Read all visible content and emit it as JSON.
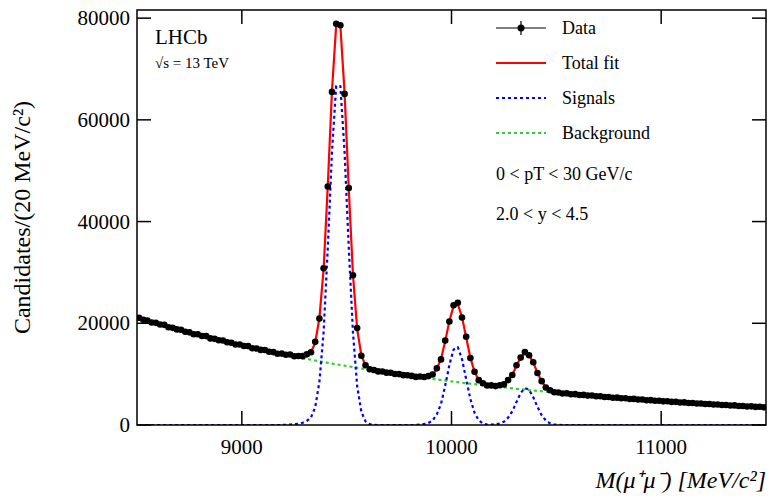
{
  "chart_data": {
    "type": "line",
    "x_label": "M(μ⁺μ⁻) [MeV/c²]",
    "y_label": "Candidates/(20 MeV/c²)",
    "annotations": [
      "LHCb",
      "√s = 13 TeV",
      "0 < pT < 30 GeV/c",
      "2.0 < y < 4.5"
    ],
    "xlim": [
      8500,
      11500
    ],
    "ylim": [
      0,
      81600
    ],
    "xticks": [
      9000,
      10000,
      11000
    ],
    "yticks": [
      0,
      20000,
      40000,
      60000,
      80000
    ],
    "grid": false,
    "legend": "upper right",
    "x": [
      8510,
      8530,
      8550,
      8570,
      8590,
      8610,
      8630,
      8650,
      8670,
      8690,
      8710,
      8730,
      8750,
      8770,
      8790,
      8810,
      8830,
      8850,
      8870,
      8890,
      8910,
      8930,
      8950,
      8970,
      8990,
      9010,
      9030,
      9050,
      9070,
      9090,
      9110,
      9130,
      9150,
      9170,
      9190,
      9210,
      9230,
      9250,
      9270,
      9290,
      9310,
      9330,
      9350,
      9370,
      9390,
      9410,
      9430,
      9450,
      9470,
      9490,
      9510,
      9530,
      9550,
      9570,
      9590,
      9610,
      9630,
      9650,
      9670,
      9690,
      9710,
      9730,
      9750,
      9770,
      9790,
      9810,
      9830,
      9850,
      9870,
      9890,
      9910,
      9930,
      9950,
      9970,
      9990,
      10010,
      10030,
      10050,
      10070,
      10090,
      10110,
      10130,
      10150,
      10170,
      10190,
      10210,
      10230,
      10250,
      10270,
      10290,
      10310,
      10330,
      10350,
      10370,
      10390,
      10410,
      10430,
      10450,
      10470,
      10490,
      10510,
      10530,
      10550,
      10570,
      10590,
      10610,
      10630,
      10650,
      10670,
      10690,
      10710,
      10730,
      10750,
      10770,
      10790,
      10810,
      10830,
      10850,
      10870,
      10890,
      10910,
      10930,
      10950,
      10970,
      10990,
      11010,
      11030,
      11050,
      11070,
      11090,
      11110,
      11130,
      11150,
      11170,
      11190,
      11210,
      11230,
      11250,
      11270,
      11290,
      11310,
      11330,
      11350,
      11370,
      11390,
      11410,
      11430,
      11450,
      11470,
      11490
    ],
    "series": [
      {
        "name": "Data",
        "type": "scatter",
        "marker": "circle",
        "color": "#000000",
        "values": [
          21100,
          20690,
          20540,
          20140,
          20090,
          19750,
          19690,
          19210,
          19100,
          18800,
          18720,
          18340,
          18220,
          17850,
          17830,
          17510,
          17480,
          17030,
          16940,
          16660,
          16620,
          16260,
          16160,
          15820,
          15820,
          15520,
          15510,
          15090,
          15030,
          14770,
          14750,
          14410,
          14330,
          14010,
          14040,
          13800,
          13850,
          13520,
          13580,
          13540,
          13890,
          14300,
          16350,
          20950,
          30800,
          46900,
          65500,
          78900,
          78600,
          65100,
          46600,
          29450,
          19050,
          13620,
          11750,
          10950,
          10800,
          10540,
          10520,
          10290,
          10260,
          10030,
          10010,
          9800,
          9790,
          9650,
          9460,
          9530,
          9430,
          9620,
          9920,
          11140,
          12900,
          16600,
          20350,
          23550,
          24050,
          21150,
          17340,
          13160,
          10480,
          8820,
          8200,
          7780,
          7790,
          7650,
          7820,
          7980,
          8830,
          9830,
          11760,
          13250,
          14330,
          13700,
          12340,
          10210,
          8620,
          7370,
          6840,
          6450,
          6390,
          6200,
          6220,
          6060,
          6070,
          5910,
          5920,
          5780,
          5790,
          5640,
          5640,
          5500,
          5510,
          5370,
          5380,
          5250,
          5250,
          5120,
          5130,
          5000,
          5010,
          4880,
          4890,
          4760,
          4770,
          4650,
          4660,
          4540,
          4550,
          4430,
          4440,
          4320,
          4340,
          4220,
          4230,
          4120,
          4140,
          4020,
          4040,
          3920,
          3940,
          3830,
          3850,
          3740,
          3750,
          3650,
          3670,
          3560,
          3580,
          3480
        ]
      },
      {
        "name": "Total fit",
        "type": "line",
        "line_style": "solid",
        "color": "#ff0000",
        "values": [
          21000,
          20750,
          20500,
          20260,
          20010,
          19780,
          19540,
          19300,
          19080,
          18850,
          18620,
          18400,
          18180,
          17970,
          17750,
          17540,
          17330,
          17120,
          16920,
          16710,
          16520,
          16320,
          16120,
          15940,
          15740,
          15550,
          15360,
          15180,
          15010,
          14820,
          14650,
          14470,
          14290,
          14130,
          13960,
          13830,
          13700,
          13610,
          13560,
          13590,
          13790,
          14330,
          16180,
          21030,
          30600,
          47100,
          65780,
          78590,
          78450,
          65360,
          46390,
          29600,
          18910,
          13710,
          11682,
          11008,
          10750,
          10590,
          10470,
          10340,
          10210,
          10090,
          9970,
          9860,
          9730,
          9620,
          9500,
          9490,
          9480,
          9570,
          9960,
          11050,
          12990,
          16490,
          20470,
          23390,
          23740,
          21260,
          17220,
          13240,
          10420,
          8850,
          8140,
          7825,
          7725,
          7690,
          7750,
          8030,
          8750,
          9900,
          11650,
          13340,
          14210,
          13790,
          12250,
          10280,
          8560,
          7420,
          6790,
          6490,
          6345,
          6240,
          6170,
          6100,
          6020,
          5950,
          5880,
          5810,
          5740,
          5670,
          5600,
          5530,
          5470,
          5410,
          5340,
          5280,
          5210,
          5150,
          5090,
          5030,
          4970,
          4910,
          4850,
          4790,
          4730,
          4680,
          4620,
          4570,
          4510,
          4460,
          4410,
          4350,
          4300,
          4250,
          4200,
          4150,
          4100,
          4050,
          4000,
          3950,
          3910,
          3860,
          3810,
          3770,
          3720,
          3680,
          3640,
          3590,
          3550,
          3510
        ]
      },
      {
        "name": "Signals",
        "type": "line",
        "line_style": "dotted",
        "color": "#0000ff",
        "values": [
          0,
          0,
          0,
          0,
          0,
          0,
          0,
          0,
          0,
          0,
          0,
          0,
          0,
          0,
          0,
          0,
          0,
          0,
          0,
          0,
          0,
          0,
          0,
          0,
          0,
          0,
          0,
          0,
          0,
          0,
          0,
          0,
          0,
          0,
          0,
          40,
          80,
          150,
          250,
          450,
          800,
          1500,
          3500,
          8500,
          18220,
          34870,
          53700,
          66650,
          66650,
          53700,
          34870,
          18220,
          7670,
          2600,
          712,
          158,
          30,
          0,
          0,
          0,
          0,
          0,
          0,
          0,
          0,
          0,
          0,
          100,
          200,
          400,
          900,
          2100,
          4150,
          7750,
          11840,
          14860,
          15310,
          12940,
          8990,
          5110,
          2390,
          910,
          300,
          75,
          75,
          130,
          280,
          650,
          1450,
          2690,
          4530,
          6300,
          7260,
          6920,
          5460,
          3570,
          1930,
          870,
          320,
          100,
          25,
          0,
          0,
          0,
          0,
          0,
          0,
          0,
          0,
          0,
          0,
          0,
          0,
          0,
          0,
          0,
          0,
          0,
          0,
          0,
          0,
          0,
          0,
          0,
          0,
          0,
          0,
          0,
          0,
          0,
          0,
          0,
          0,
          0,
          0,
          0,
          0,
          0,
          0,
          0,
          0,
          0,
          0,
          0,
          0,
          0,
          0,
          0,
          0,
          0
        ]
      },
      {
        "name": "Background",
        "type": "line",
        "line_style": "dotted",
        "color": "#33cc33",
        "values": [
          21000,
          20750,
          20500,
          20260,
          20010,
          19780,
          19540,
          19300,
          19080,
          18850,
          18620,
          18400,
          18180,
          17970,
          17750,
          17540,
          17330,
          17120,
          16920,
          16710,
          16520,
          16320,
          16120,
          15940,
          15740,
          15550,
          15360,
          15180,
          15010,
          14820,
          14650,
          14470,
          14290,
          14130,
          13960,
          13790,
          13620,
          13460,
          13310,
          13140,
          12990,
          12830,
          12680,
          12530,
          12380,
          12230,
          12080,
          11940,
          11800,
          11660,
          11520,
          11380,
          11240,
          11110,
          10970,
          10850,
          10720,
          10590,
          10470,
          10340,
          10210,
          10090,
          9970,
          9860,
          9730,
          9620,
          9500,
          9390,
          9280,
          9170,
          9060,
          8950,
          8840,
          8740,
          8630,
          8530,
          8430,
          8320,
          8230,
          8130,
          8030,
          7940,
          7840,
          7750,
          7650,
          7560,
          7470,
          7380,
          7300,
          7210,
          7120,
          7040,
          6950,
          6870,
          6790,
          6710,
          6630,
          6550,
          6470,
          6390,
          6320,
          6240,
          6170,
          6100,
          6020,
          5950,
          5880,
          5810,
          5740,
          5670,
          5600,
          5530,
          5470,
          5410,
          5340,
          5280,
          5210,
          5150,
          5090,
          5030,
          4970,
          4910,
          4850,
          4790,
          4730,
          4680,
          4620,
          4570,
          4510,
          4460,
          4410,
          4350,
          4300,
          4250,
          4200,
          4150,
          4100,
          4050,
          4000,
          3950,
          3910,
          3860,
          3810,
          3770,
          3720,
          3680,
          3640,
          3590,
          3550,
          3510
        ]
      }
    ]
  }
}
